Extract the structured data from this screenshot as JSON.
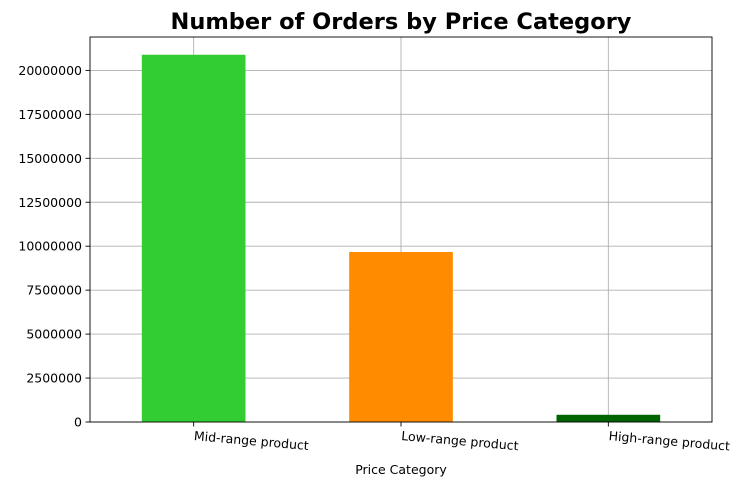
{
  "chart_data": {
    "type": "bar",
    "title": "Number of Orders by Price Category",
    "xlabel": "Price Category",
    "ylabel": "",
    "categories": [
      "Mid-range product",
      "Low-range product",
      "High-range product"
    ],
    "values": [
      20890000,
      9670000,
      410000
    ],
    "colors": [
      "#32cd32",
      "#ff8c00",
      "#006400"
    ],
    "ylim": [
      0,
      21900000
    ],
    "yticks": [
      0,
      2500000,
      5000000,
      7500000,
      10000000,
      12500000,
      15000000,
      17500000,
      20000000
    ],
    "ytick_labels": [
      "0",
      "2500000",
      "5000000",
      "7500000",
      "10000000",
      "12500000",
      "15000000",
      "17500000",
      "20000000"
    ],
    "grid": true,
    "legend": "none"
  }
}
